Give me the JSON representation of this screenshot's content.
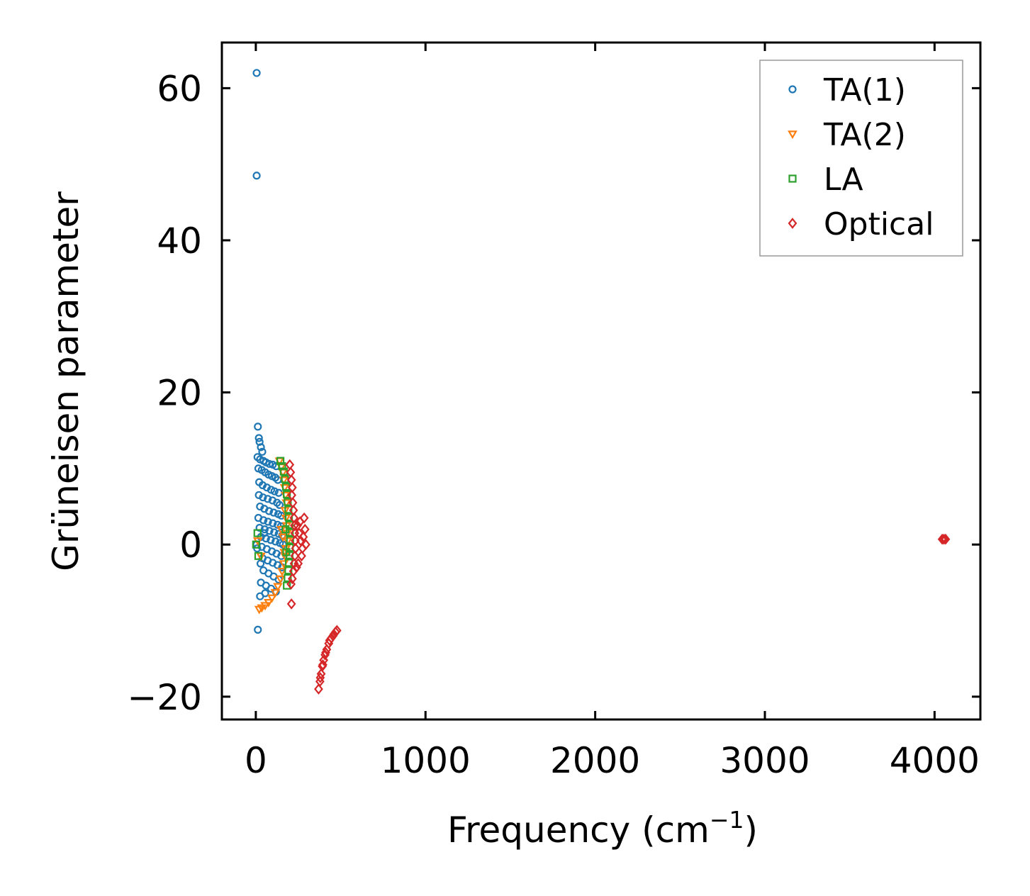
{
  "chart_data": {
    "type": "scatter",
    "xlabel": "Frequency (cm",
    "xlabel_superscript": "−1",
    "xlabel_suffix": ")",
    "ylabel": "Grüneisen parameter",
    "xlim": [
      -200,
      4270
    ],
    "ylim": [
      -23,
      66
    ],
    "xticks": [
      0,
      1000,
      2000,
      3000,
      4000
    ],
    "xtick_labels": [
      "0",
      "1000",
      "2000",
      "3000",
      "4000"
    ],
    "yticks": [
      -20,
      0,
      20,
      40,
      60
    ],
    "ytick_labels": [
      "−20",
      "0",
      "20",
      "40",
      "60"
    ],
    "grid": false,
    "legend_position": "top-right",
    "series": [
      {
        "name": "TA(1)",
        "marker": "circle",
        "color": "#1f77b4",
        "points": [
          [
            5,
            62
          ],
          [
            5,
            48.5
          ],
          [
            12,
            15.5
          ],
          [
            18,
            14
          ],
          [
            22,
            13.5
          ],
          [
            30,
            12.8
          ],
          [
            38,
            12.2
          ],
          [
            10,
            11.5
          ],
          [
            25,
            11.2
          ],
          [
            45,
            11
          ],
          [
            60,
            10.8
          ],
          [
            80,
            10.6
          ],
          [
            100,
            10.5
          ],
          [
            120,
            10.3
          ],
          [
            15,
            10
          ],
          [
            35,
            9.8
          ],
          [
            55,
            9.5
          ],
          [
            75,
            9.2
          ],
          [
            95,
            9
          ],
          [
            115,
            8.8
          ],
          [
            130,
            8.5
          ],
          [
            20,
            8.2
          ],
          [
            40,
            7.8
          ],
          [
            65,
            7.5
          ],
          [
            90,
            7.2
          ],
          [
            110,
            7
          ],
          [
            135,
            6.8
          ],
          [
            18,
            6.5
          ],
          [
            42,
            6.2
          ],
          [
            70,
            6
          ],
          [
            98,
            5.8
          ],
          [
            125,
            5.5
          ],
          [
            140,
            5.2
          ],
          [
            25,
            5
          ],
          [
            50,
            4.7
          ],
          [
            78,
            4.4
          ],
          [
            105,
            4.2
          ],
          [
            132,
            4
          ],
          [
            150,
            3.8
          ],
          [
            15,
            3.5
          ],
          [
            45,
            3.2
          ],
          [
            72,
            3
          ],
          [
            100,
            2.8
          ],
          [
            128,
            2.6
          ],
          [
            148,
            2.4
          ],
          [
            22,
            2.2
          ],
          [
            52,
            2
          ],
          [
            80,
            1.8
          ],
          [
            108,
            1.6
          ],
          [
            135,
            1.4
          ],
          [
            155,
            1.2
          ],
          [
            30,
            1
          ],
          [
            60,
            0.8
          ],
          [
            88,
            0.6
          ],
          [
            116,
            0.4
          ],
          [
            142,
            0.2
          ],
          [
            160,
            0
          ],
          [
            5,
            0
          ],
          [
            35,
            -0.3
          ],
          [
            65,
            -0.6
          ],
          [
            95,
            -0.9
          ],
          [
            122,
            -1.2
          ],
          [
            150,
            -1.5
          ],
          [
            40,
            -1.8
          ],
          [
            70,
            -2.1
          ],
          [
            100,
            -2.4
          ],
          [
            128,
            -2.7
          ],
          [
            155,
            -3
          ],
          [
            45,
            -3.4
          ],
          [
            75,
            -3.8
          ],
          [
            105,
            -4.2
          ],
          [
            135,
            -4.6
          ],
          [
            30,
            -5
          ],
          [
            60,
            -5.4
          ],
          [
            90,
            -5.8
          ],
          [
            118,
            -6.2
          ],
          [
            25,
            -6.8
          ],
          [
            55,
            -6.4
          ],
          [
            12,
            -11.2
          ],
          [
            8,
            -0.5
          ],
          [
            28,
            -2.5
          ],
          [
            48,
            1.5
          ]
        ]
      },
      {
        "name": "TA(2)",
        "marker": "triangle-down",
        "color": "#ff7f0e",
        "points": [
          [
            140,
            11
          ],
          [
            150,
            10.2
          ],
          [
            160,
            9.5
          ],
          [
            165,
            8.5
          ],
          [
            170,
            7.5
          ],
          [
            175,
            6.5
          ],
          [
            180,
            5.5
          ],
          [
            172,
            4.5
          ],
          [
            178,
            3.5
          ],
          [
            182,
            2.5
          ],
          [
            185,
            1.5
          ],
          [
            188,
            0.5
          ],
          [
            178,
            -0.5
          ],
          [
            172,
            -1.5
          ],
          [
            165,
            -2.5
          ],
          [
            155,
            -3.5
          ],
          [
            145,
            -4.5
          ],
          [
            130,
            -5.5
          ],
          [
            115,
            -6.3
          ],
          [
            95,
            -7
          ],
          [
            75,
            -7.6
          ],
          [
            55,
            -8
          ],
          [
            35,
            -8.3
          ],
          [
            20,
            -8.5
          ],
          [
            30,
            -1.5
          ],
          [
            12,
            0.5
          ],
          [
            160,
            1
          ],
          [
            168,
            -1
          ],
          [
            150,
            2
          ]
        ]
      },
      {
        "name": "LA",
        "marker": "square",
        "color": "#2ca02c",
        "points": [
          [
            145,
            11
          ],
          [
            155,
            10.3
          ],
          [
            165,
            9.6
          ],
          [
            172,
            8.6
          ],
          [
            178,
            7.6
          ],
          [
            183,
            6.6
          ],
          [
            188,
            5.6
          ],
          [
            192,
            4.6
          ],
          [
            195,
            3.6
          ],
          [
            198,
            2.6
          ],
          [
            200,
            1.6
          ],
          [
            202,
            0.6
          ],
          [
            200,
            -0.4
          ],
          [
            198,
            -1.4
          ],
          [
            195,
            -2.4
          ],
          [
            192,
            -3.4
          ],
          [
            188,
            -4.4
          ],
          [
            183,
            -5.4
          ],
          [
            10,
            1.5
          ],
          [
            15,
            -1.5
          ],
          [
            2,
            0
          ],
          [
            175,
            2
          ],
          [
            180,
            -1
          ]
        ]
      },
      {
        "name": "Optical",
        "marker": "diamond",
        "color": "#d62728",
        "points": [
          [
            200,
            10.5
          ],
          [
            205,
            9.5
          ],
          [
            210,
            8.5
          ],
          [
            215,
            7.5
          ],
          [
            212,
            6.5
          ],
          [
            218,
            5.5
          ],
          [
            222,
            4.5
          ],
          [
            225,
            3.5
          ],
          [
            228,
            2.5
          ],
          [
            230,
            1.5
          ],
          [
            232,
            0.5
          ],
          [
            234,
            -0.5
          ],
          [
            230,
            -1.5
          ],
          [
            226,
            -2.5
          ],
          [
            222,
            -3.5
          ],
          [
            215,
            -4.5
          ],
          [
            208,
            -5.2
          ],
          [
            245,
            2.5
          ],
          [
            255,
            1.5
          ],
          [
            265,
            0.5
          ],
          [
            275,
            -0.5
          ],
          [
            285,
            3.5
          ],
          [
            290,
            2
          ],
          [
            270,
            -1.5
          ],
          [
            250,
            -2.5
          ],
          [
            280,
            1
          ],
          [
            260,
            3
          ],
          [
            240,
            -3
          ],
          [
            295,
            0
          ],
          [
            210,
            -7.8
          ],
          [
            370,
            -19
          ],
          [
            378,
            -18
          ],
          [
            385,
            -17
          ],
          [
            392,
            -16
          ],
          [
            400,
            -15.2
          ],
          [
            408,
            -14.5
          ],
          [
            418,
            -13.8
          ],
          [
            430,
            -13
          ],
          [
            445,
            -12.3
          ],
          [
            460,
            -11.8
          ],
          [
            478,
            -11.3
          ],
          [
            380,
            -17.5
          ],
          [
            395,
            -15.8
          ],
          [
            412,
            -14.2
          ],
          [
            435,
            -12.6
          ],
          [
            455,
            -12
          ],
          [
            470,
            -11.5
          ],
          [
            4045,
            0.7
          ],
          [
            4055,
            0.7
          ],
          [
            4065,
            0.7
          ]
        ]
      }
    ]
  }
}
